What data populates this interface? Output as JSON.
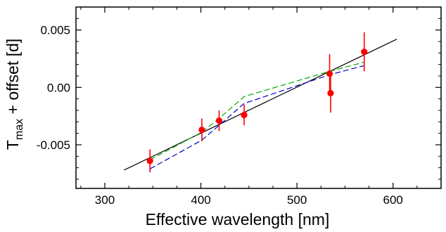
{
  "chart_data": {
    "type": "scatter",
    "xlabel": "Effective wavelength [nm]",
    "ylabel": {
      "main": "T",
      "subscript": "max",
      "rest": " + offset [d]"
    },
    "xlim": [
      270,
      650
    ],
    "ylim": [
      -0.0088,
      0.007
    ],
    "x_ticks": [
      300,
      400,
      500,
      600
    ],
    "x_tick_labels": [
      "300",
      "400",
      "500",
      "600"
    ],
    "y_ticks": [
      0.005,
      0.0,
      -0.005
    ],
    "y_tick_labels": [
      "0.005",
      "0.00",
      "-0.005"
    ],
    "grid": false,
    "measurements": {
      "x": [
        347,
        401,
        419,
        445,
        534,
        535,
        570
      ],
      "y": [
        -0.0064,
        -0.0037,
        -0.0029,
        -0.0024,
        0.0012,
        -0.0005,
        0.0031
      ],
      "err": [
        0.001,
        0.001,
        0.0009,
        0.0009,
        0.0017,
        0.0017,
        0.0017
      ],
      "color": "#ff0000"
    },
    "series": [
      {
        "style": "solid",
        "color": "#000000",
        "x": [
          320,
          604
        ],
        "y": [
          -0.0072,
          0.0042
        ]
      },
      {
        "style": "dashed",
        "color": "#00aa00",
        "x": [
          347,
          401,
          419,
          445,
          534,
          570
        ],
        "y": [
          -0.0063,
          -0.0039,
          -0.0027,
          -0.0008,
          0.0014,
          0.0022
        ]
      },
      {
        "style": "dashed",
        "color": "#0000cc",
        "x": [
          347,
          401,
          419,
          445,
          534,
          570
        ],
        "y": [
          -0.0071,
          -0.0046,
          -0.0033,
          -0.0014,
          0.0011,
          0.0019
        ]
      }
    ]
  }
}
